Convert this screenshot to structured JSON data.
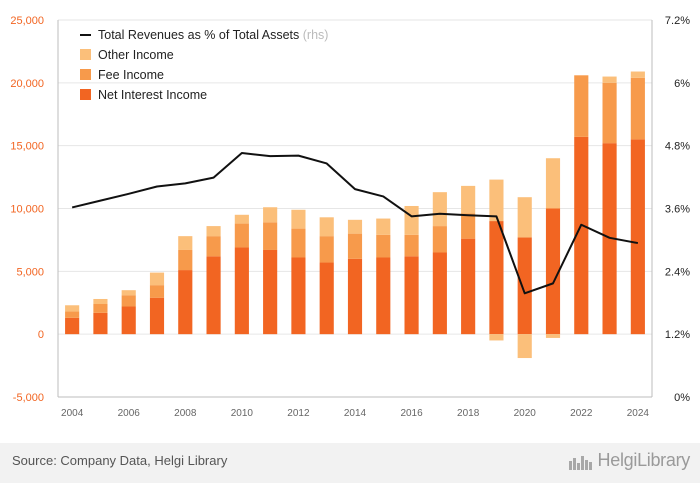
{
  "chart_data": {
    "type": "bar",
    "stacked": true,
    "categories": [
      "2004",
      "2005",
      "2006",
      "2007",
      "2008",
      "2009",
      "2010",
      "2011",
      "2012",
      "2013",
      "2014",
      "2015",
      "2016",
      "2017",
      "2018",
      "2019",
      "2020",
      "2021",
      "2022",
      "2023",
      "2024"
    ],
    "x_tick_labels": [
      "2004",
      "2006",
      "2008",
      "2010",
      "2012",
      "2014",
      "2016",
      "2018",
      "2020",
      "2022",
      "2024"
    ],
    "series": [
      {
        "name": "Net Interest Income",
        "color": "#f26522",
        "values": [
          1300,
          1700,
          2200,
          2900,
          5100,
          6200,
          6900,
          6700,
          6100,
          5700,
          6000,
          6100,
          6200,
          6500,
          7600,
          9000,
          7700,
          10000,
          15700,
          15200,
          15500
        ]
      },
      {
        "name": "Fee Income",
        "color": "#f79a4b",
        "values": [
          500,
          700,
          900,
          1000,
          1600,
          1600,
          1900,
          2200,
          2300,
          2100,
          2000,
          1800,
          1700,
          2100,
          2000,
          0,
          0,
          0,
          4900,
          4800,
          4900
        ]
      },
      {
        "name": "Other Income",
        "color": "#fbbf7a",
        "values": [
          500,
          400,
          400,
          1000,
          1100,
          800,
          700,
          1200,
          1500,
          1500,
          1100,
          1300,
          2300,
          2700,
          2200,
          3300,
          3200,
          4000,
          0,
          500,
          500
        ]
      }
    ],
    "negative_other_income": {
      "2019": -500,
      "2020": -1900,
      "2021": -300
    },
    "line_series": {
      "name": "Total Revenues as % of Total Assets",
      "note": "(rhs)",
      "color": "#111111",
      "axis": "right",
      "values": [
        3.62,
        3.75,
        3.88,
        4.02,
        4.08,
        4.19,
        4.66,
        4.6,
        4.61,
        4.46,
        3.97,
        3.83,
        3.45,
        3.5,
        3.47,
        3.45,
        1.98,
        2.17,
        3.29,
        3.04,
        2.94
      ]
    },
    "left_axis": {
      "ylim": [
        -5000,
        25000
      ],
      "ticks": [
        25000,
        20000,
        15000,
        10000,
        5000,
        0,
        -5000
      ],
      "tick_labels": [
        "25,000",
        "20,000",
        "15,000",
        "10,000",
        "5,000",
        "0",
        "-5,000"
      ]
    },
    "right_axis": {
      "ylim": [
        0,
        7.2
      ],
      "ticks": [
        7.2,
        6,
        4.8,
        3.6,
        2.4,
        1.2,
        0
      ],
      "tick_labels": [
        "7.2%",
        "6%",
        "4.8%",
        "3.6%",
        "2.4%",
        "1.2%",
        "0%"
      ]
    },
    "legend_position": "top-left",
    "grid": true
  },
  "footer": {
    "source": "Source: Company Data, Helgi Library",
    "logo_text": "HelgiLibrary"
  }
}
